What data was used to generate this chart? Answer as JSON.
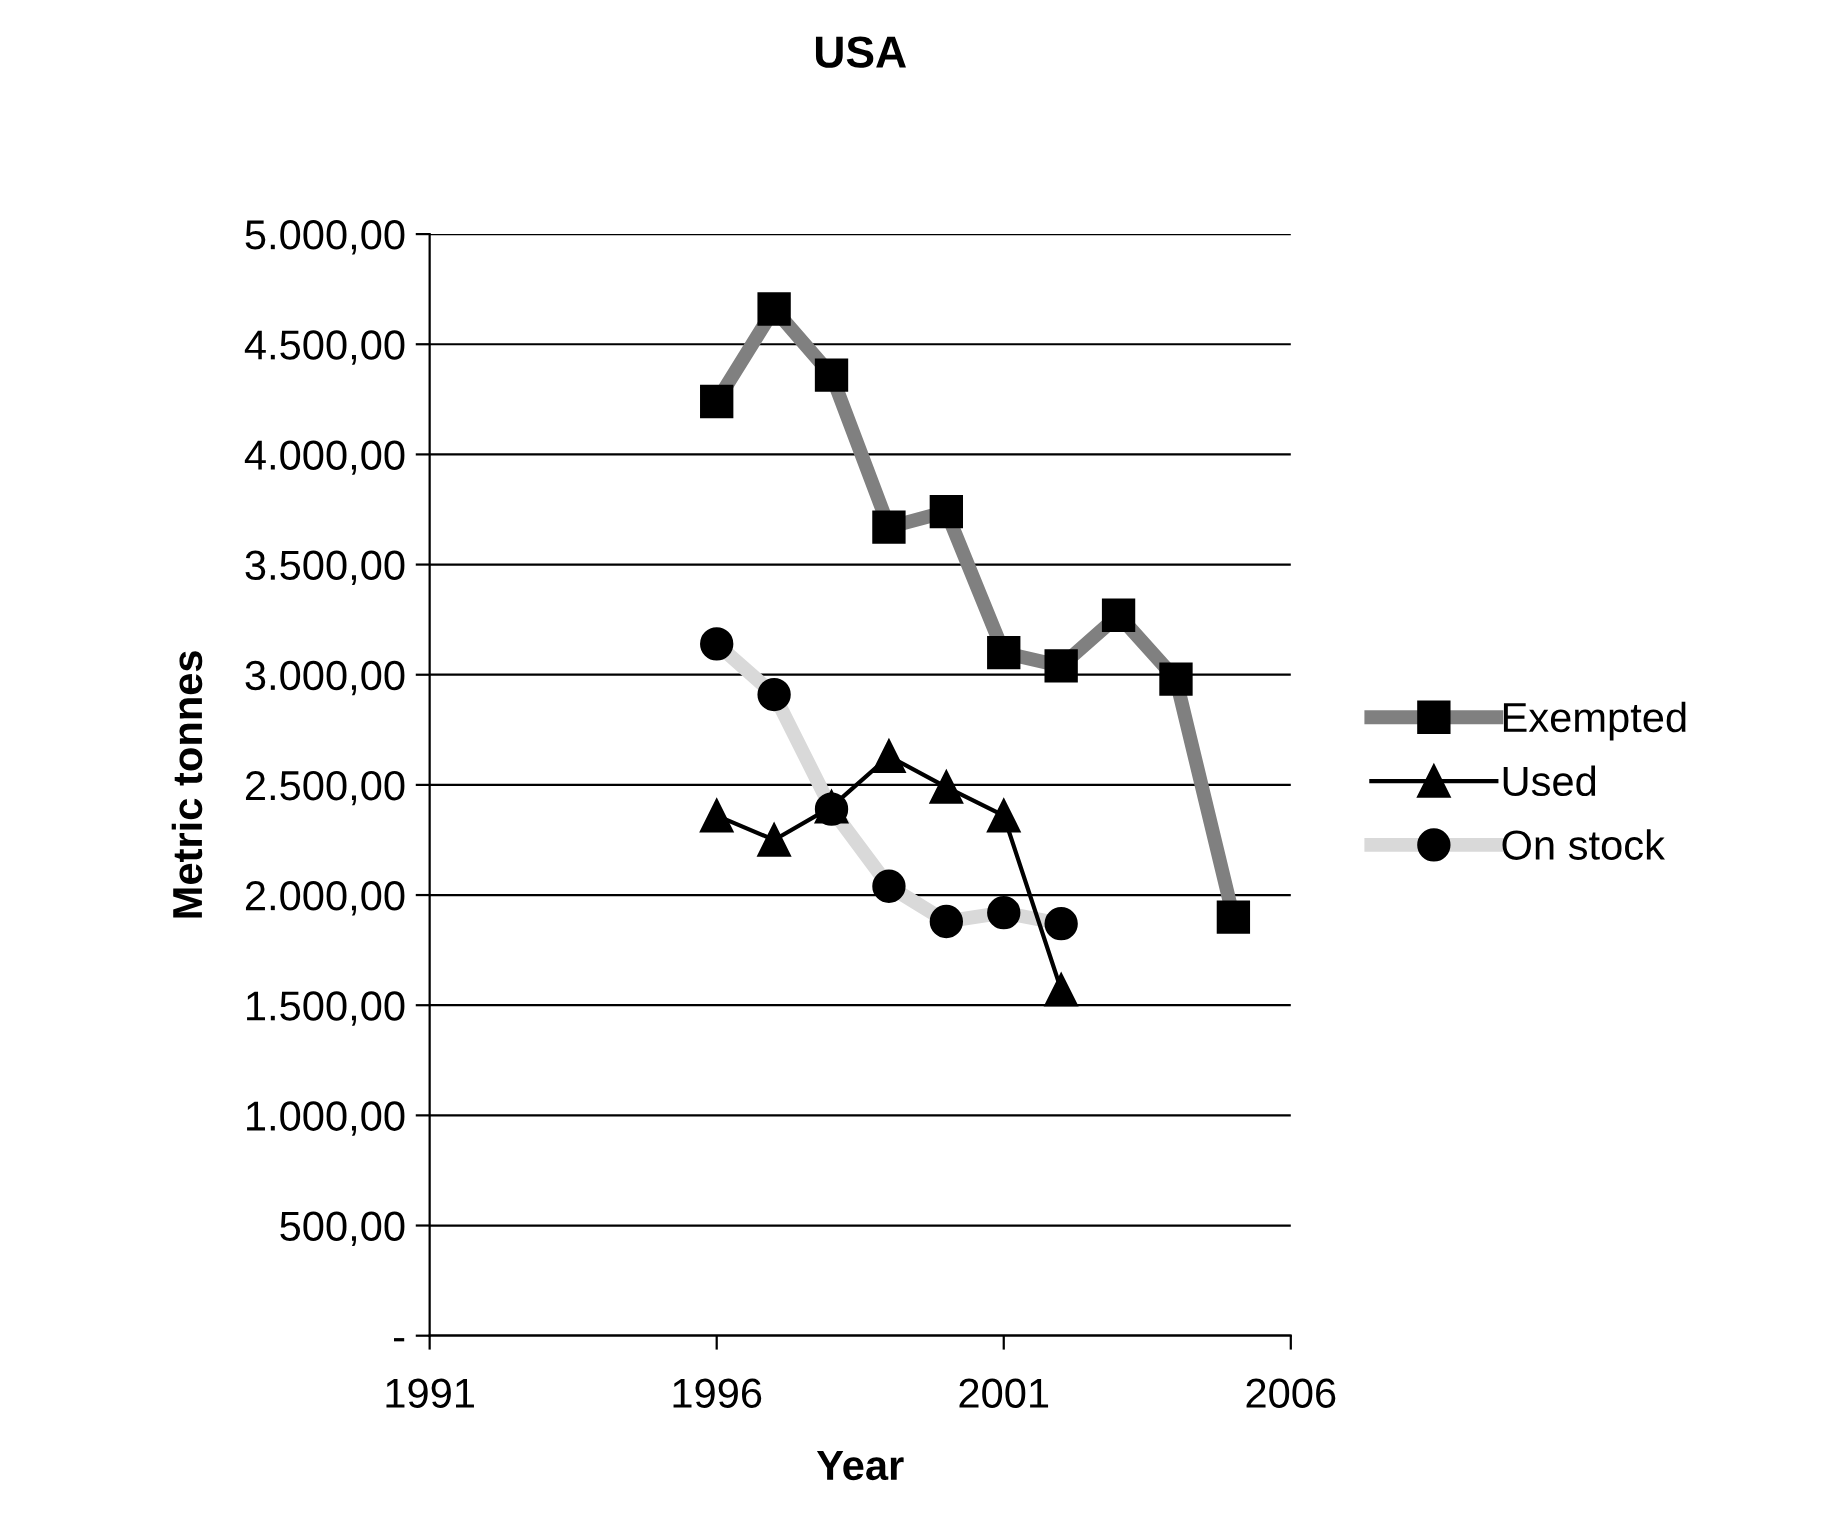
{
  "chart_data": {
    "type": "line",
    "title": "USA",
    "xlabel": "Year",
    "ylabel": "Metric tonnes",
    "xlim": [
      1991,
      2006
    ],
    "xticks": [
      1991,
      1996,
      2001,
      2006
    ],
    "ylim": [
      0,
      5000
    ],
    "yticks": [
      {
        "value": 0,
        "label": "-"
      },
      {
        "value": 500,
        "label": "500,00"
      },
      {
        "value": 1000,
        "label": "1.000,00"
      },
      {
        "value": 1500,
        "label": "1.500,00"
      },
      {
        "value": 2000,
        "label": "2.000,00"
      },
      {
        "value": 2500,
        "label": "2.500,00"
      },
      {
        "value": 3000,
        "label": "3.000,00"
      },
      {
        "value": 3500,
        "label": "3.500,00"
      },
      {
        "value": 4000,
        "label": "4.000,00"
      },
      {
        "value": 4500,
        "label": "4.500,00"
      },
      {
        "value": 5000,
        "label": "5.000,00"
      }
    ],
    "grid": "y",
    "legend": "right",
    "series": [
      {
        "name": "Exempted",
        "color": "#808080",
        "marker": "square",
        "x": [
          1996,
          1997,
          1998,
          1999,
          2000,
          2001,
          2002,
          2003,
          2004,
          2005
        ],
        "values": [
          4240,
          4660,
          4360,
          3670,
          3740,
          3100,
          3040,
          3270,
          2980,
          1900
        ]
      },
      {
        "name": "Used",
        "color": "#000000",
        "marker": "triangle",
        "x": [
          1996,
          1997,
          1998,
          1999,
          2000,
          2001,
          2002
        ],
        "values": [
          2360,
          2250,
          2400,
          2630,
          2490,
          2360,
          1570
        ]
      },
      {
        "name": "On stock",
        "color": "#d9d9d9",
        "marker": "circle",
        "x": [
          1996,
          1997,
          1998,
          1999,
          2000,
          2001,
          2002
        ],
        "values": [
          3140,
          2910,
          2390,
          2040,
          1880,
          1920,
          1870
        ]
      }
    ]
  }
}
